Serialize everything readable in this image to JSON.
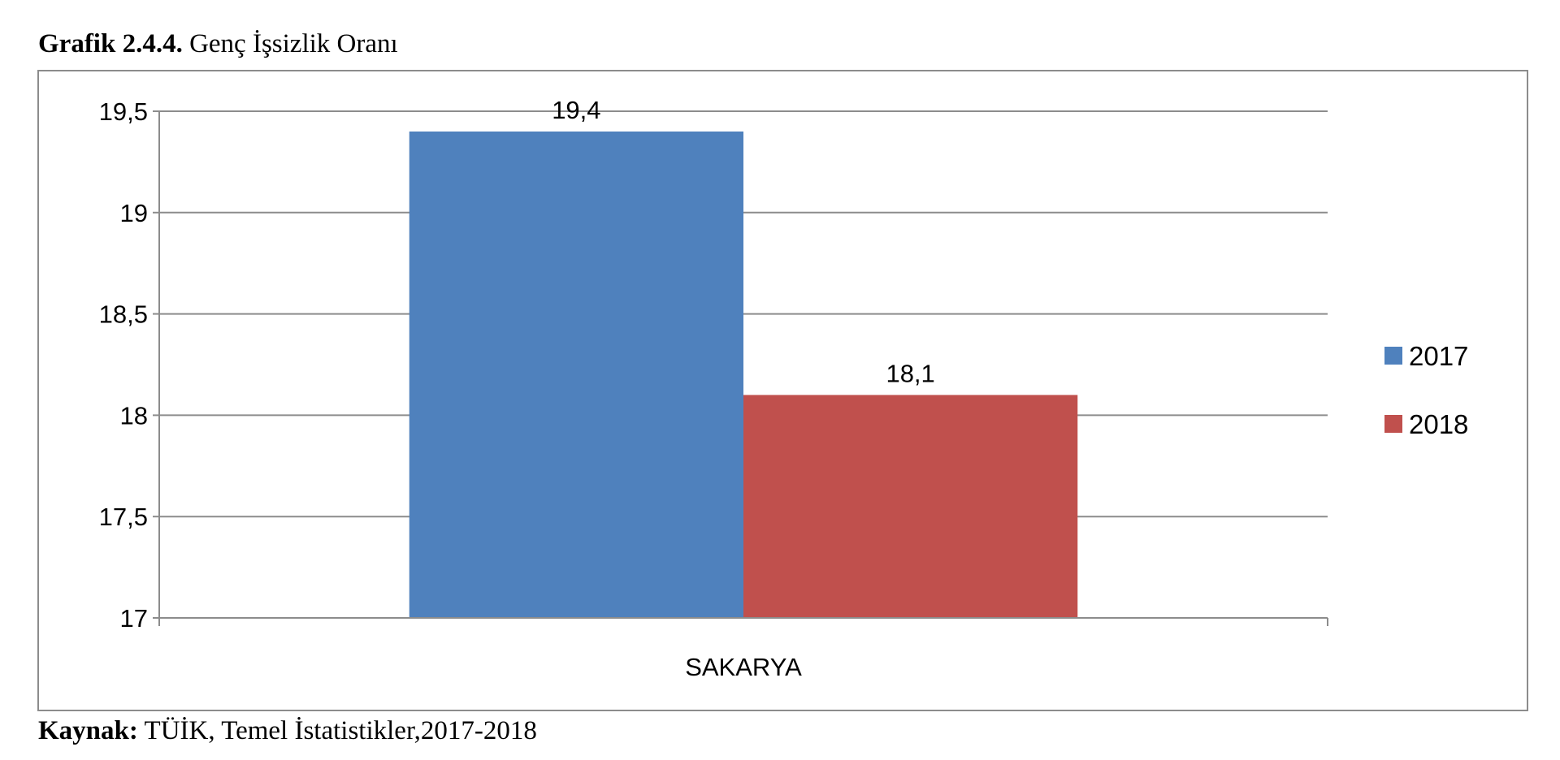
{
  "caption": {
    "label": "Grafik 2.4.4.",
    "title": "Genç İşsizlik Oranı"
  },
  "source": {
    "label": "Kaynak:",
    "text": "TÜİK, Temel İstatistikler,2017-2018"
  },
  "chart_data": {
    "type": "bar",
    "categories": [
      "SAKARYA"
    ],
    "series": [
      {
        "name": "2017",
        "values": [
          19.4
        ],
        "color": "#4f81bd",
        "label": "19,4"
      },
      {
        "name": "2018",
        "values": [
          18.1
        ],
        "color": "#c0504d",
        "label": "18,1"
      }
    ],
    "ylim": [
      17,
      19.5
    ],
    "yticks": [
      {
        "value": 17,
        "label": "17"
      },
      {
        "value": 17.5,
        "label": "17,5"
      },
      {
        "value": 18,
        "label": "18"
      },
      {
        "value": 18.5,
        "label": "18,5"
      },
      {
        "value": 19,
        "label": "19"
      },
      {
        "value": 19.5,
        "label": "19,5"
      }
    ],
    "grid": true,
    "legend": "right",
    "gridColor": "#8c8c8c"
  }
}
